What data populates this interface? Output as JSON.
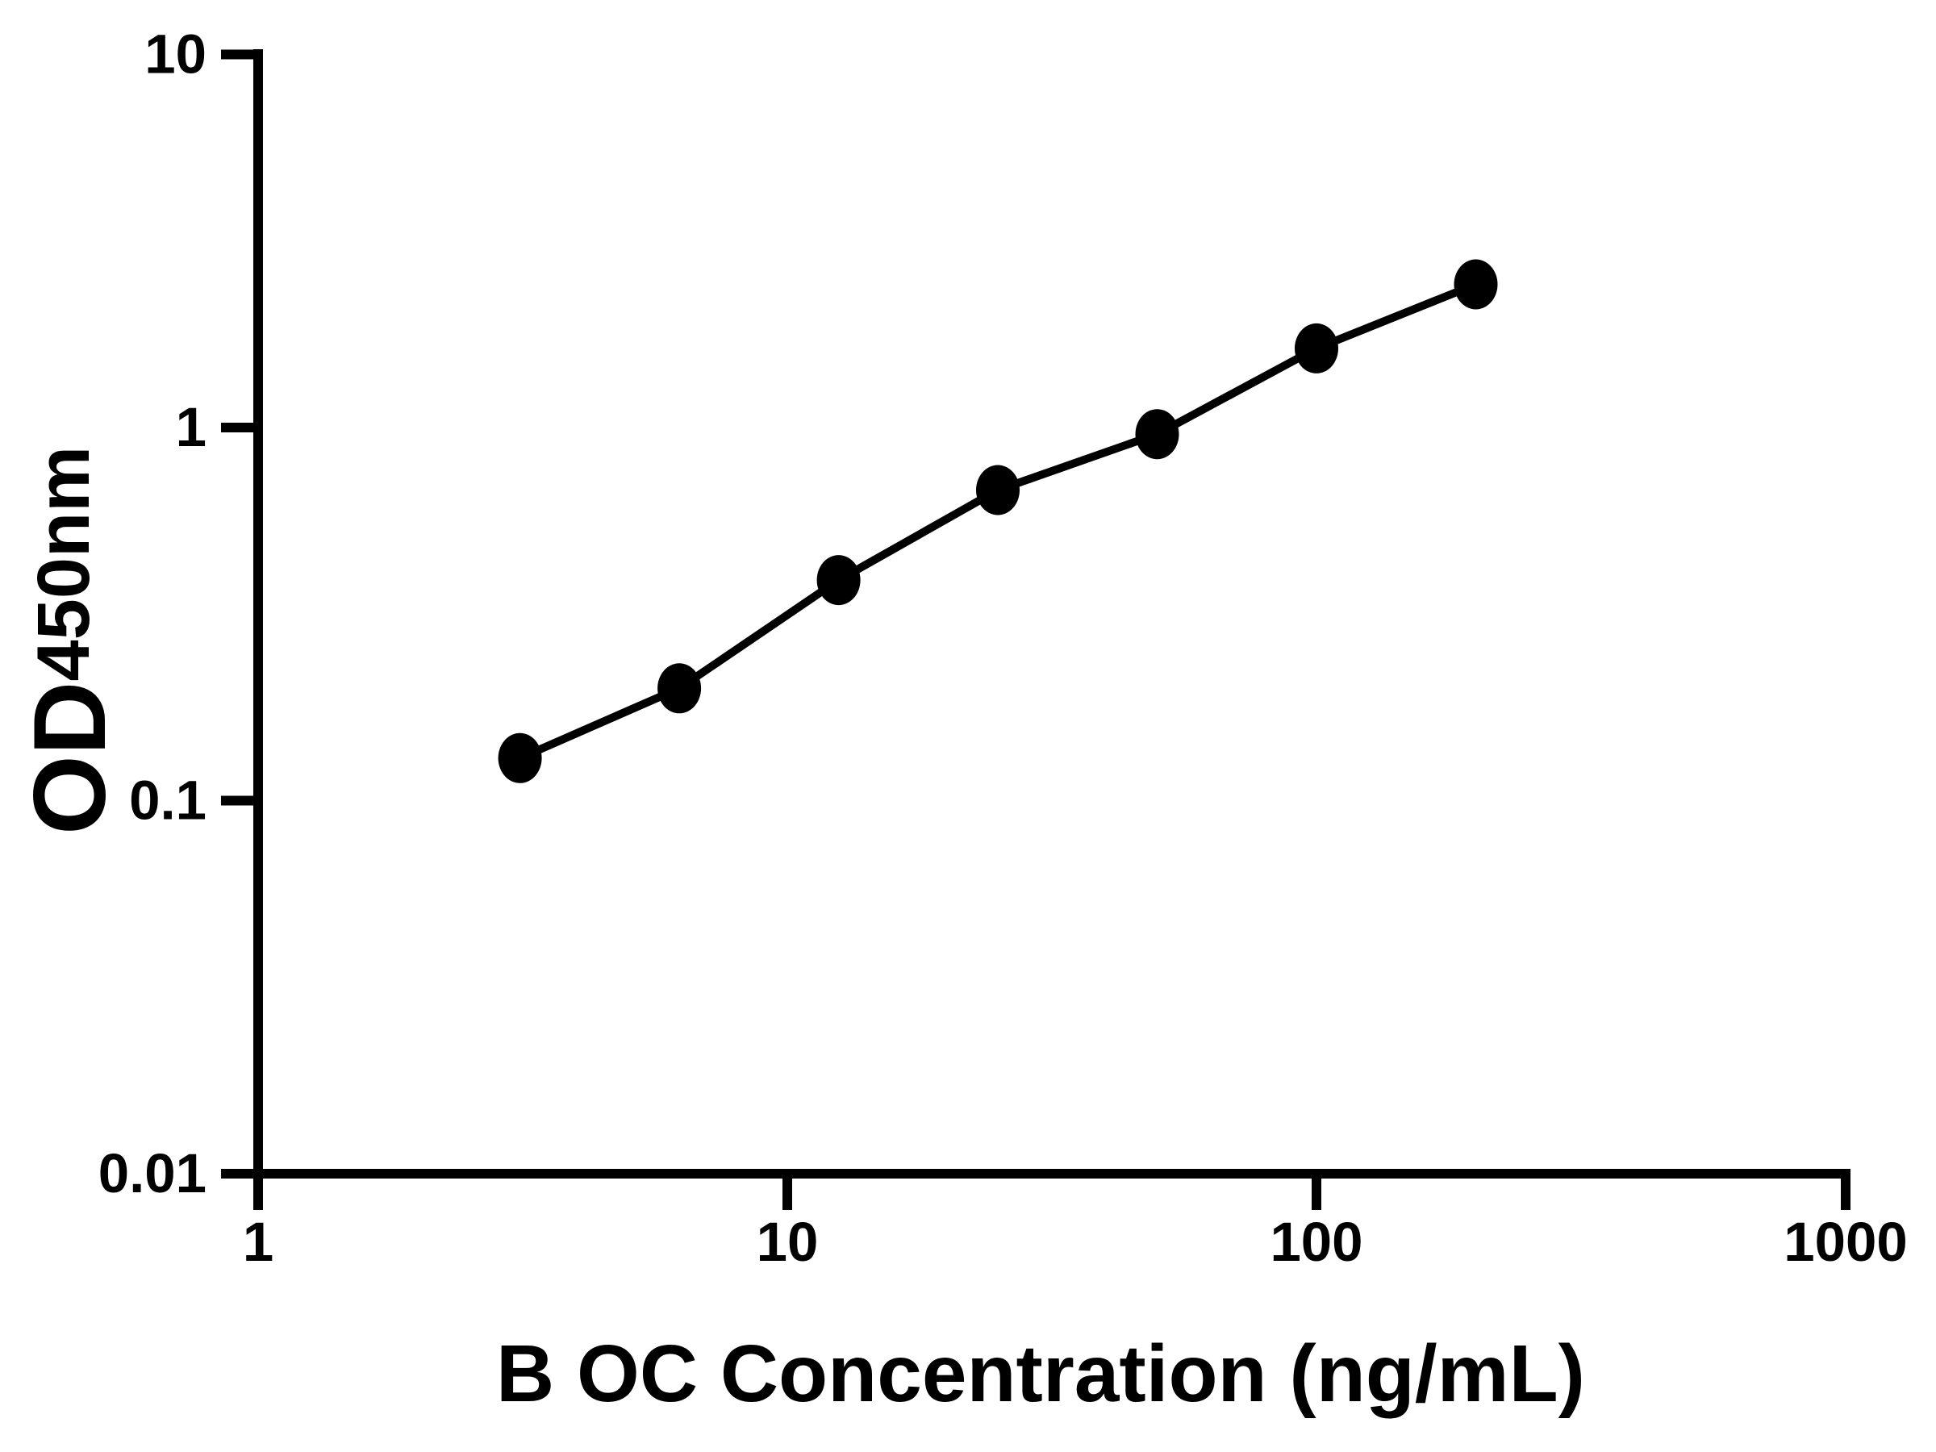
{
  "figure": {
    "background": "#ffffff",
    "foreground": "#000000"
  },
  "chart_data": {
    "type": "scatter",
    "subtype": "standard-curve-connected-points",
    "title": "",
    "xlabel": "B OC Concentration (ng/mL)",
    "ylabel": {
      "main": "OD",
      "sub": "450nm"
    },
    "x_scale": "log",
    "y_scale": "log",
    "xlim": [
      1,
      1000
    ],
    "ylim": [
      0.01,
      10
    ],
    "x_ticks": [
      1,
      10,
      100,
      1000
    ],
    "x_tick_labels": [
      "1",
      "10",
      "100",
      "1000"
    ],
    "y_ticks": [
      10,
      1,
      0.1,
      0.01
    ],
    "y_tick_labels": [
      "10",
      "1",
      "0.1",
      "0.01"
    ],
    "grid": false,
    "legend": "none",
    "series": [
      {
        "marker": "filled-circle",
        "color": "#000000",
        "line": "solid",
        "x": [
          3.125,
          6.25,
          12.5,
          25,
          50,
          100,
          200
        ],
        "y": [
          0.13,
          0.2,
          0.39,
          0.68,
          0.96,
          1.63,
          2.42
        ]
      }
    ]
  }
}
